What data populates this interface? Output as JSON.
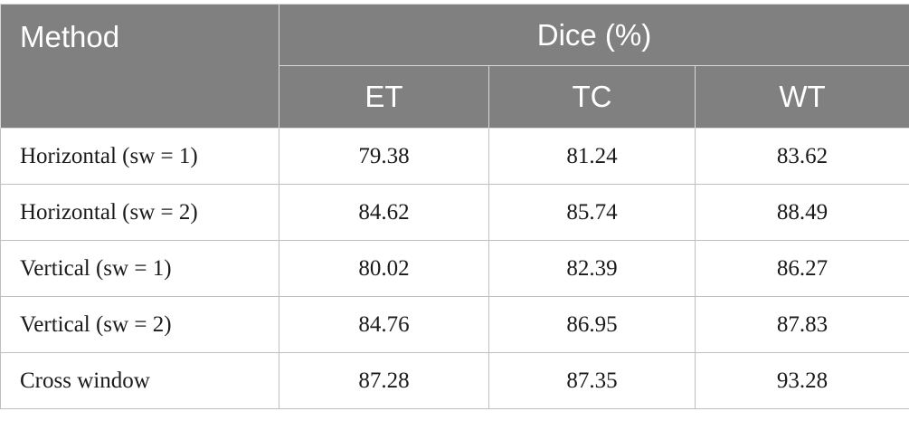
{
  "table": {
    "header": {
      "method": "Method",
      "group": "Dice (%)",
      "metrics": [
        "ET",
        "TC",
        "WT"
      ]
    },
    "rows": [
      {
        "method": "Horizontal (sw = 1)",
        "et": "79.38",
        "tc": "81.24",
        "wt": "83.62"
      },
      {
        "method": "Horizontal (sw = 2)",
        "et": "84.62",
        "tc": "85.74",
        "wt": "88.49"
      },
      {
        "method": "Vertical (sw = 1)",
        "et": "80.02",
        "tc": "82.39",
        "wt": "86.27"
      },
      {
        "method": "Vertical (sw = 2)",
        "et": "84.76",
        "tc": "86.95",
        "wt": "87.83"
      },
      {
        "method": "Cross window",
        "et": "87.28",
        "tc": "87.35",
        "wt": "93.28"
      }
    ]
  },
  "colors": {
    "header_background": "#808080",
    "header_text": "#ffffff",
    "border": "#bfbfbf"
  }
}
